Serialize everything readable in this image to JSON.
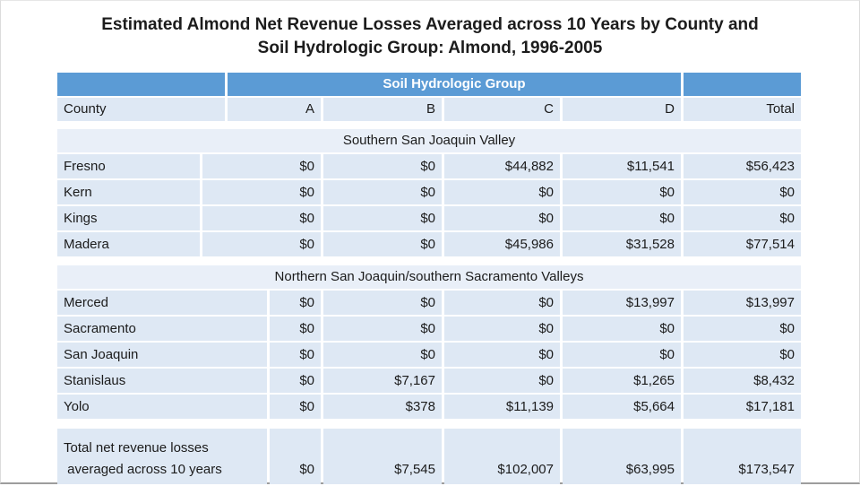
{
  "title": {
    "line1": "Estimated Almond Net Revenue Losses Averaged across 10 Years by County and",
    "line2": "Soil Hydrologic Group: Almond, 1996-2005"
  },
  "table": {
    "group_header": "Soil Hydrologic Group",
    "county_header": "County",
    "col_a": "A",
    "col_b": "B",
    "col_c": "C",
    "col_d": "D",
    "total_header": "Total"
  },
  "sections": [
    {
      "name": "Southern San Joaquin Valley",
      "rows": [
        {
          "county": "Fresno",
          "a": "$0",
          "b": "$0",
          "c": "$44,882",
          "d": "$11,541",
          "total": "$56,423"
        },
        {
          "county": "Kern",
          "a": "$0",
          "b": "$0",
          "c": "$0",
          "d": "$0",
          "total": "$0"
        },
        {
          "county": "Kings",
          "a": "$0",
          "b": "$0",
          "c": "$0",
          "d": "$0",
          "total": "$0"
        },
        {
          "county": "Madera",
          "a": "$0",
          "b": "$0",
          "c": "$45,986",
          "d": "$31,528",
          "total": "$77,514"
        }
      ]
    },
    {
      "name": "Northern San Joaquin/southern Sacramento Valleys",
      "rows": [
        {
          "county": "Merced",
          "a": "$0",
          "b": "$0",
          "c": "$0",
          "d": "$13,997",
          "total": "$13,997"
        },
        {
          "county": "Sacramento",
          "a": "$0",
          "b": "$0",
          "c": "$0",
          "d": "$0",
          "total": "$0"
        },
        {
          "county": "San Joaquin",
          "a": "$0",
          "b": "$0",
          "c": "$0",
          "d": "$0",
          "total": "$0"
        },
        {
          "county": "Stanislaus",
          "a": "$0",
          "b": "$7,167",
          "c": "$0",
          "d": "$1,265",
          "total": "$8,432"
        },
        {
          "county": "Yolo",
          "a": "$0",
          "b": "$378",
          "c": "$11,139",
          "d": "$5,664",
          "total": "$17,181"
        }
      ]
    }
  ],
  "grand_total": {
    "label_line1": "Total net revenue losses",
    "label_line2": " averaged across 10 years",
    "a": "$0",
    "b": "$7,545",
    "c": "$102,007",
    "d": "$63,995",
    "total": "$173,547"
  },
  "colors": {
    "header_blue": "#5b9bd5",
    "cell_light": "#dee8f4",
    "band_light": "#e9eff8"
  }
}
